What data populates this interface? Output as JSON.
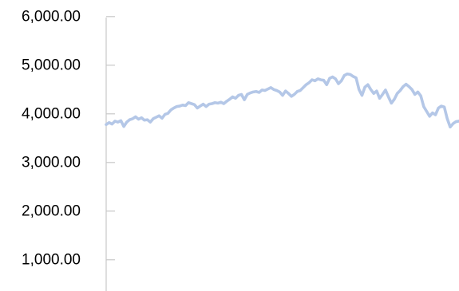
{
  "chart_data": {
    "type": "line",
    "title": "",
    "xlabel": "",
    "ylabel": "",
    "ylim": [
      0,
      6000
    ],
    "yticks": [
      1000,
      2000,
      3000,
      4000,
      5000,
      6000
    ],
    "ytick_labels": [
      "1,000.00",
      "2,000.00",
      "3,000.00",
      "4,000.00",
      "5,000.00",
      "6,000.00"
    ],
    "grid": false,
    "legend": "none",
    "line_color": "#b4c7e7",
    "axis_color": "#c8c8c8",
    "x": [
      0,
      1,
      2,
      3,
      4,
      5,
      6,
      7,
      8,
      9,
      10,
      11,
      12,
      13,
      14,
      15,
      16,
      17,
      18,
      19,
      20,
      21,
      22,
      23,
      24,
      25,
      26,
      27,
      28,
      29,
      30,
      31,
      32,
      33,
      34,
      35,
      36,
      37,
      38,
      39,
      40,
      41,
      42,
      43,
      44,
      45,
      46,
      47,
      48,
      49,
      50,
      51,
      52,
      53,
      54,
      55,
      56,
      57,
      58,
      59,
      60,
      61,
      62,
      63,
      64,
      65,
      66,
      67,
      68,
      69,
      70,
      71,
      72,
      73,
      74,
      75,
      76,
      77,
      78,
      79,
      80,
      81,
      82,
      83,
      84,
      85,
      86,
      87,
      88,
      89,
      90,
      91,
      92,
      93,
      94,
      95,
      96,
      97,
      98,
      99,
      100,
      101,
      102,
      103,
      104,
      105,
      106,
      107,
      108,
      109,
      110,
      111,
      112,
      113,
      114,
      115,
      116,
      117,
      118,
      119,
      120
    ],
    "series": [
      {
        "values": [
          3780,
          3820,
          3790,
          3850,
          3830,
          3860,
          3740,
          3830,
          3880,
          3900,
          3940,
          3890,
          3920,
          3870,
          3880,
          3830,
          3900,
          3930,
          3960,
          3910,
          3990,
          4010,
          4080,
          4120,
          4150,
          4160,
          4180,
          4170,
          4230,
          4210,
          4190,
          4120,
          4160,
          4200,
          4150,
          4200,
          4210,
          4230,
          4220,
          4240,
          4210,
          4260,
          4300,
          4350,
          4320,
          4380,
          4400,
          4290,
          4400,
          4430,
          4450,
          4460,
          4440,
          4490,
          4480,
          4510,
          4540,
          4500,
          4480,
          4450,
          4380,
          4470,
          4420,
          4360,
          4400,
          4460,
          4480,
          4540,
          4600,
          4640,
          4700,
          4680,
          4720,
          4700,
          4690,
          4600,
          4730,
          4760,
          4720,
          4620,
          4680,
          4790,
          4820,
          4810,
          4770,
          4740,
          4500,
          4380,
          4550,
          4600,
          4500,
          4420,
          4470,
          4320,
          4400,
          4490,
          4350,
          4220,
          4300,
          4420,
          4480,
          4560,
          4610,
          4560,
          4500,
          4400,
          4450,
          4370,
          4150,
          4050,
          3950,
          4020,
          3980,
          4120,
          4160,
          4140,
          3900,
          3730,
          3800,
          3840,
          3850
        ]
      }
    ]
  }
}
